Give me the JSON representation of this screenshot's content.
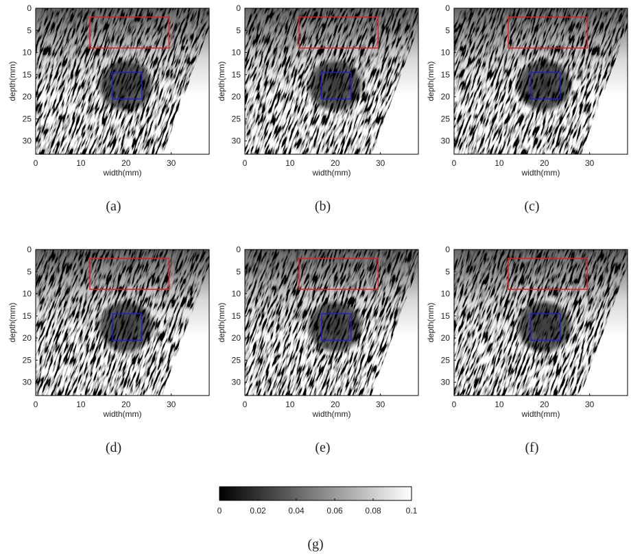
{
  "chart_data": [
    {
      "type": "image",
      "caption": "(a)",
      "xlabel": "width(mm)",
      "ylabel": "depth(mm)",
      "xlim": [
        0,
        38.4
      ],
      "ylim": [
        0,
        33
      ],
      "y_inverted": true,
      "xticks": [
        0,
        10,
        20,
        30
      ],
      "yticks": [
        0,
        5,
        10,
        15,
        20,
        25,
        30
      ],
      "rois": [
        {
          "color": "#e02020",
          "x": [
            12,
            29.5
          ],
          "y": [
            2,
            9
          ]
        },
        {
          "color": "#2020d0",
          "x": [
            17,
            23.5
          ],
          "y": [
            14.5,
            20.5
          ]
        }
      ]
    },
    {
      "type": "image",
      "caption": "(b)",
      "xlabel": "width(mm)",
      "ylabel": "depth(mm)",
      "xlim": [
        0,
        38.4
      ],
      "ylim": [
        0,
        33
      ],
      "y_inverted": true,
      "xticks": [
        0,
        10,
        20,
        30
      ],
      "yticks": [
        0,
        5,
        10,
        15,
        20,
        25,
        30
      ],
      "rois": [
        {
          "color": "#e02020",
          "x": [
            12,
            29.5
          ],
          "y": [
            2,
            9
          ]
        },
        {
          "color": "#2020d0",
          "x": [
            17,
            23.5
          ],
          "y": [
            14.5,
            20.5
          ]
        }
      ]
    },
    {
      "type": "image",
      "caption": "(c)",
      "xlabel": "width(mm)",
      "ylabel": "depth(mm)",
      "xlim": [
        0,
        38.4
      ],
      "ylim": [
        0,
        33
      ],
      "y_inverted": true,
      "xticks": [
        0,
        10,
        20,
        30
      ],
      "yticks": [
        0,
        5,
        10,
        15,
        20,
        25,
        30
      ],
      "rois": [
        {
          "color": "#e02020",
          "x": [
            12,
            29.5
          ],
          "y": [
            2,
            9
          ]
        },
        {
          "color": "#2020d0",
          "x": [
            17,
            23.5
          ],
          "y": [
            14.5,
            20.5
          ]
        }
      ]
    },
    {
      "type": "image",
      "caption": "(d)",
      "xlabel": "width(mm)",
      "ylabel": "depth(mm)",
      "xlim": [
        0,
        38.4
      ],
      "ylim": [
        0,
        33
      ],
      "y_inverted": true,
      "xticks": [
        0,
        10,
        20,
        30
      ],
      "yticks": [
        0,
        5,
        10,
        15,
        20,
        25,
        30
      ],
      "rois": [
        {
          "color": "#e02020",
          "x": [
            12,
            29.5
          ],
          "y": [
            2,
            9
          ]
        },
        {
          "color": "#2020d0",
          "x": [
            17,
            23.5
          ],
          "y": [
            14.5,
            20.5
          ]
        }
      ]
    },
    {
      "type": "image",
      "caption": "(e)",
      "xlabel": "width(mm)",
      "ylabel": "depth(mm)",
      "xlim": [
        0,
        38.4
      ],
      "ylim": [
        0,
        33
      ],
      "y_inverted": true,
      "xticks": [
        0,
        10,
        20,
        30
      ],
      "yticks": [
        0,
        5,
        10,
        15,
        20,
        25,
        30
      ],
      "rois": [
        {
          "color": "#e02020",
          "x": [
            12,
            29.5
          ],
          "y": [
            2,
            9
          ]
        },
        {
          "color": "#2020d0",
          "x": [
            17,
            23.5
          ],
          "y": [
            14.5,
            20.5
          ]
        }
      ]
    },
    {
      "type": "image",
      "caption": "(f)",
      "xlabel": "width(mm)",
      "ylabel": "depth(mm)",
      "xlim": [
        0,
        38.4
      ],
      "ylim": [
        0,
        33
      ],
      "y_inverted": true,
      "xticks": [
        0,
        10,
        20,
        30
      ],
      "yticks": [
        0,
        5,
        10,
        15,
        20,
        25,
        30
      ],
      "rois": [
        {
          "color": "#e02020",
          "x": [
            12,
            29.5
          ],
          "y": [
            2,
            9
          ]
        },
        {
          "color": "#2020d0",
          "x": [
            17,
            23.5
          ],
          "y": [
            14.5,
            20.5
          ]
        }
      ]
    },
    {
      "type": "colorbar",
      "caption": "(g)",
      "xlim": [
        0,
        0.1
      ],
      "xticks": [
        0,
        0.02,
        0.04,
        0.06,
        0.08,
        0.1
      ],
      "colormap": [
        "#000000",
        "#ffffff"
      ]
    }
  ]
}
